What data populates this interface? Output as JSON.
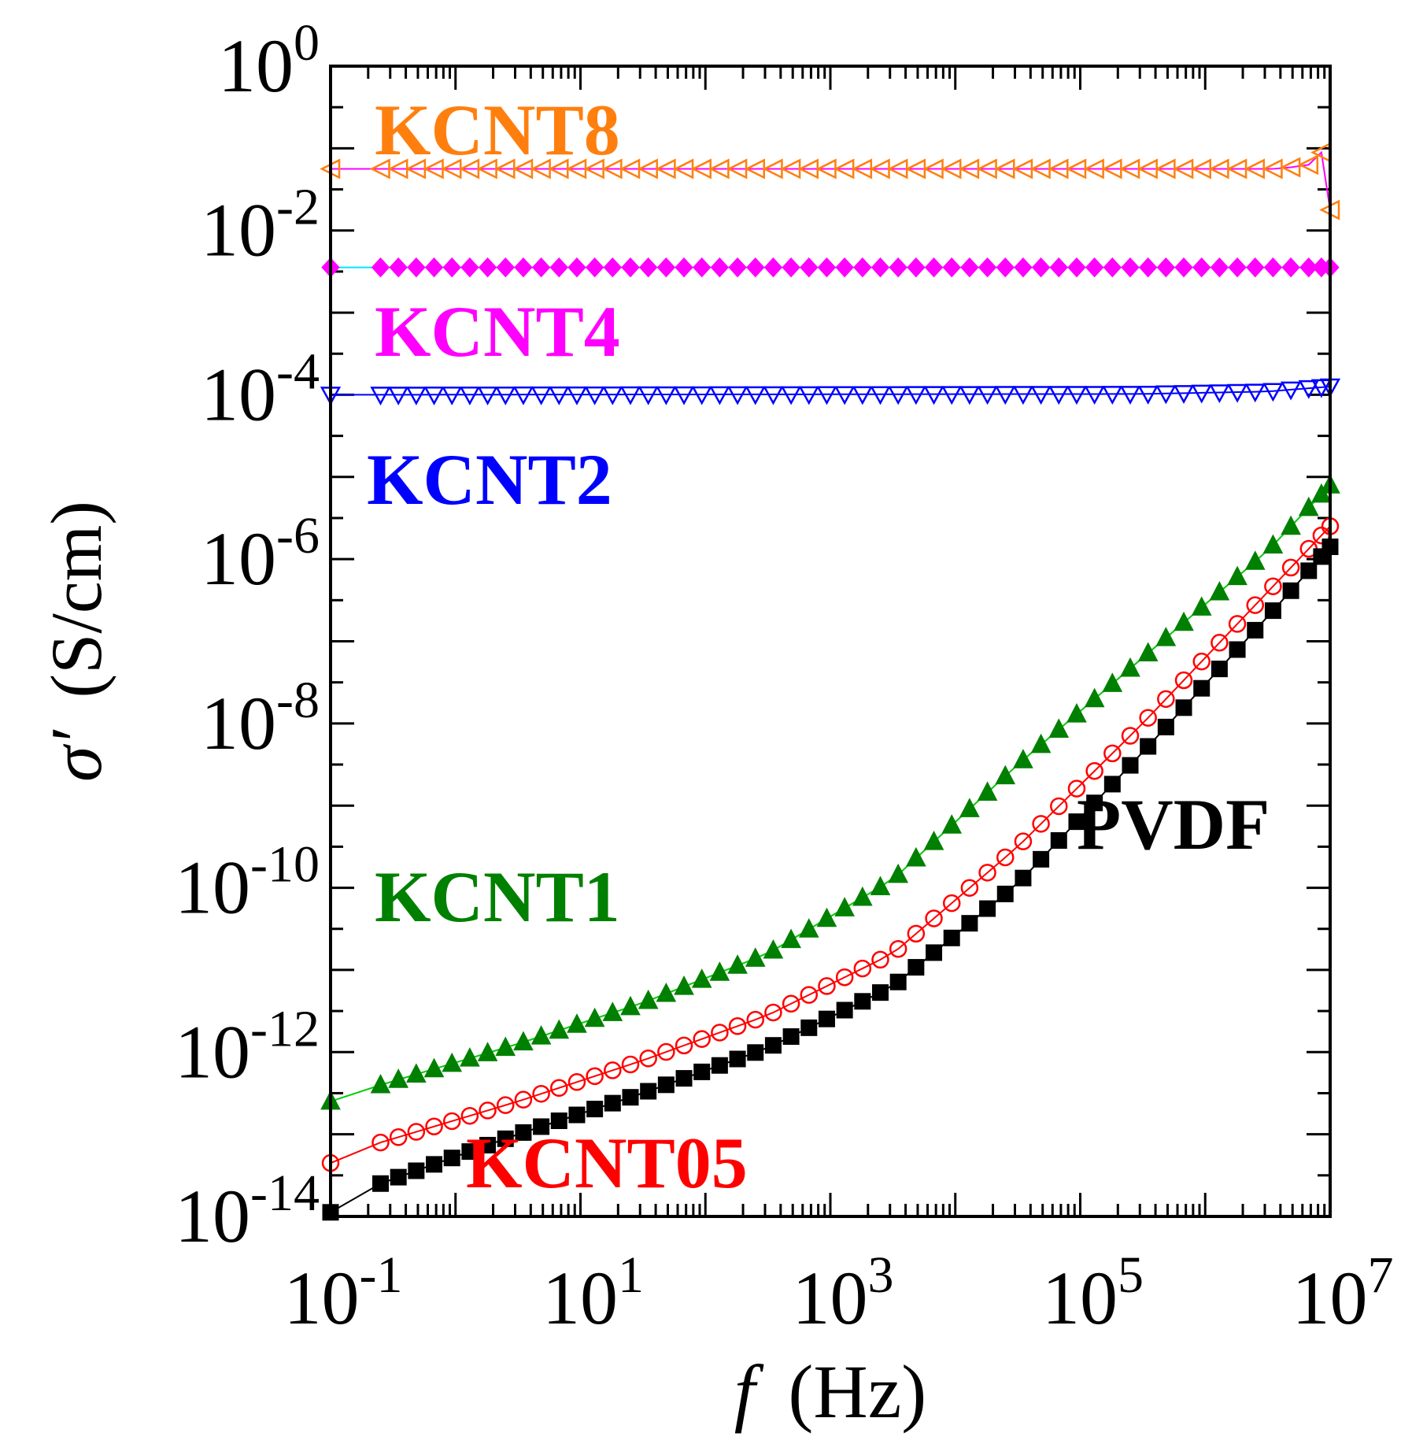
{
  "chart_data": {
    "type": "scatter",
    "title": "",
    "xlabel_symbol": "f",
    "xlabel_unit": "(Hz)",
    "ylabel_symbol": "σ′",
    "ylabel_unit": "(S/cm)",
    "x_scale": "log",
    "y_scale": "log",
    "xlim": [
      0.1,
      10000000
    ],
    "ylim": [
      1e-14,
      1
    ],
    "x_tick_labels": [
      {
        "base": "10",
        "exp": "-1",
        "value": 0.1
      },
      {
        "base": "10",
        "exp": "1",
        "value": 10
      },
      {
        "base": "10",
        "exp": "3",
        "value": 1000
      },
      {
        "base": "10",
        "exp": "5",
        "value": 100000
      },
      {
        "base": "10",
        "exp": "7",
        "value": 10000000
      }
    ],
    "y_tick_labels": [
      {
        "base": "10",
        "exp": "0",
        "value": 1
      },
      {
        "base": "10",
        "exp": "-2",
        "value": 0.01
      },
      {
        "base": "10",
        "exp": "-4",
        "value": 0.0001
      },
      {
        "base": "10",
        "exp": "-6",
        "value": 1e-06
      },
      {
        "base": "10",
        "exp": "-8",
        "value": 1e-08
      },
      {
        "base": "10",
        "exp": "-10",
        "value": 1e-10
      },
      {
        "base": "10",
        "exp": "-12",
        "value": 1e-12
      },
      {
        "base": "10",
        "exp": "-14",
        "value": 1e-14
      }
    ],
    "grid": false,
    "legend": "inline labels",
    "series": [
      {
        "name": "KCNT8",
        "color": "#ff7f0e",
        "line_color": "#ff00ff",
        "marker": "triangle-left-open",
        "points": [
          [
            -1,
            -1.25
          ],
          [
            -0.4,
            -1.25
          ],
          [
            6.6,
            -1.25
          ],
          [
            6.83,
            -1.2
          ],
          [
            6.93,
            -1.05
          ],
          [
            7.0,
            -1.75
          ]
        ]
      },
      {
        "name": "KCNT4",
        "color": "#ff00ff",
        "line_color": "#00e5ff",
        "marker": "diamond-filled",
        "points": [
          [
            -1,
            -2.45
          ],
          [
            7.0,
            -2.45
          ]
        ]
      },
      {
        "name": "KCNT2",
        "color": "#0000ff",
        "line_color": "#0000ff",
        "marker": "triangle-down-open",
        "points": [
          [
            -1,
            -4.0
          ],
          [
            5.5,
            -3.99
          ],
          [
            6.5,
            -3.96
          ],
          [
            7.0,
            -3.9
          ]
        ]
      },
      {
        "name": "KCNT1",
        "color": "#008000",
        "line_color": "#00cc00",
        "marker": "triangle-up-filled",
        "points": [
          [
            -1,
            -12.6
          ],
          [
            -0.6,
            -12.4
          ],
          [
            0.5,
            -11.9
          ],
          [
            1.5,
            -11.4
          ],
          [
            2.5,
            -10.8
          ],
          [
            3.5,
            -9.9
          ],
          [
            4.5,
            -8.5
          ],
          [
            5.5,
            -7.2
          ],
          [
            6.5,
            -5.9
          ],
          [
            7.0,
            -5.1
          ]
        ]
      },
      {
        "name": "KCNT05",
        "color": "#ff0000",
        "line_color": "#ff0000",
        "marker": "circle-open",
        "points": [
          [
            -1,
            -13.35
          ],
          [
            -0.6,
            -13.1
          ],
          [
            0.5,
            -12.6
          ],
          [
            1.5,
            -12.1
          ],
          [
            2.5,
            -11.55
          ],
          [
            3.5,
            -10.8
          ],
          [
            4.5,
            -9.5
          ],
          [
            5.5,
            -8.0
          ],
          [
            6.5,
            -6.4
          ],
          [
            7.0,
            -5.6
          ]
        ]
      },
      {
        "name": "PVDF",
        "color": "#000000",
        "line_color": "#000000",
        "marker": "square-filled",
        "points": [
          [
            -1,
            -13.95
          ],
          [
            -0.6,
            -13.6
          ],
          [
            0.5,
            -13.0
          ],
          [
            1.5,
            -12.5
          ],
          [
            2.5,
            -11.95
          ],
          [
            3.5,
            -11.2
          ],
          [
            4.5,
            -9.95
          ],
          [
            5.5,
            -8.35
          ],
          [
            6.5,
            -6.7
          ],
          [
            7.0,
            -5.85
          ]
        ]
      }
    ],
    "labels": [
      {
        "text": "KCNT8",
        "color": "#ff7f0e"
      },
      {
        "text": "KCNT4",
        "color": "#ff00ff"
      },
      {
        "text": "KCNT2",
        "color": "#0000ff"
      },
      {
        "text": "KCNT1",
        "color": "#008000"
      },
      {
        "text": "PVDF",
        "color": "#000000"
      },
      {
        "text": "KCNT05",
        "color": "#ff0000"
      }
    ]
  }
}
